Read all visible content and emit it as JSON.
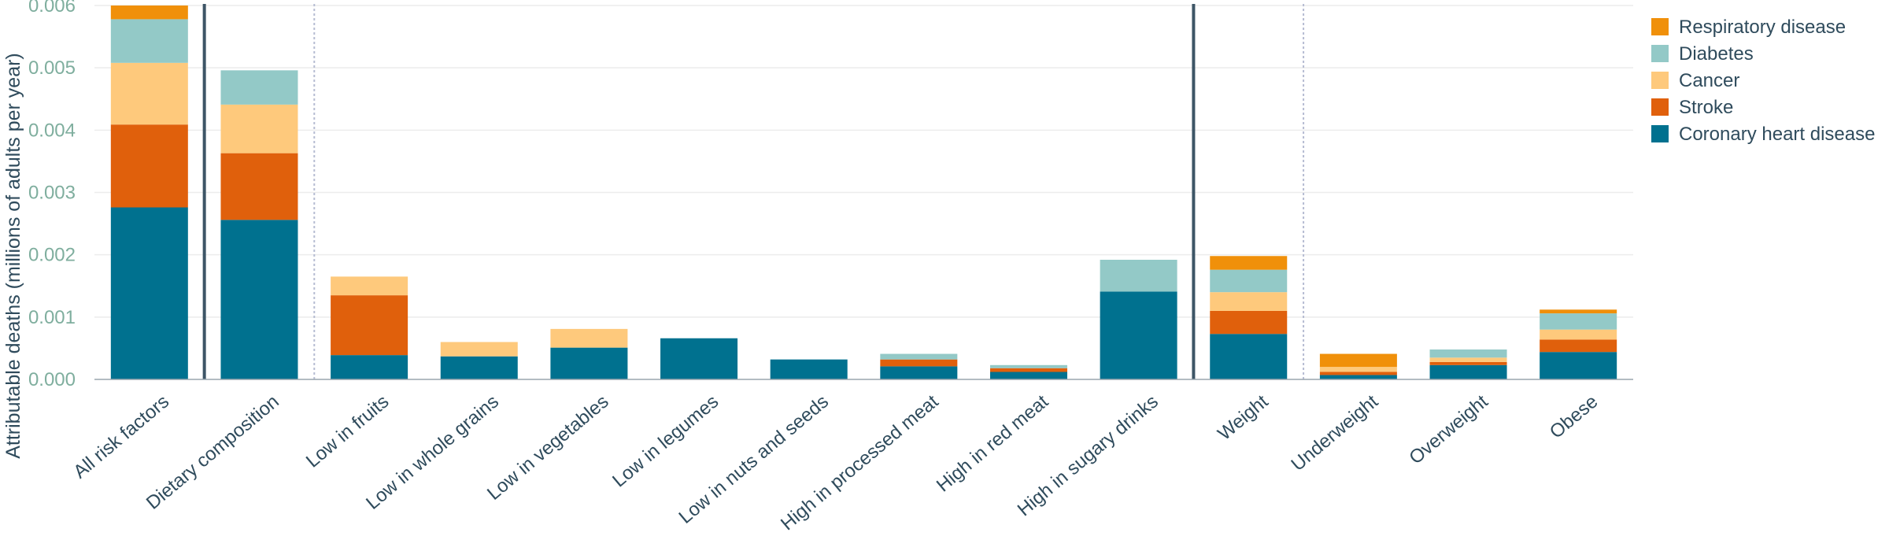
{
  "chart_data": {
    "type": "bar",
    "stacked": true,
    "ylabel": "Attributable deaths (millions of adults per year)",
    "ylim": [
      0,
      0.006
    ],
    "yticks": [
      "0.000",
      "0.001",
      "0.002",
      "0.003",
      "0.004",
      "0.005",
      "0.006"
    ],
    "grid": true,
    "legend_position": "right",
    "categories": [
      "All risk factors",
      "Dietary composition",
      "Low in fruits",
      "Low in whole grains",
      "Low in vegetables",
      "Low in legumes",
      "Low in nuts and seeds",
      "High in processed meat",
      "High in red meat",
      "High in sugary drinks",
      "Weight",
      "Underweight",
      "Overweight",
      "Obese"
    ],
    "group_separators": {
      "solid_after": [
        0,
        9
      ],
      "dotted_after": [
        1,
        10
      ]
    },
    "series": [
      {
        "name": "Coronary heart disease",
        "color": "#00718f",
        "values": [
          0.00276,
          0.00256,
          0.00039,
          0.00037,
          0.00051,
          0.00066,
          0.00032,
          0.00021,
          0.00012,
          0.00141,
          0.00073,
          7e-05,
          0.00023,
          0.00044
        ]
      },
      {
        "name": "Stroke",
        "color": "#e0600c",
        "values": [
          0.00133,
          0.00107,
          0.00096,
          0.0,
          0.0,
          0.0,
          0.0,
          0.00011,
          6e-05,
          0.0,
          0.00037,
          5e-05,
          5e-05,
          0.0002
        ]
      },
      {
        "name": "Cancer",
        "color": "#fec97c",
        "values": [
          0.00099,
          0.00078,
          0.0003,
          0.00023,
          0.0003,
          0.0,
          0.0,
          0.0,
          0.0,
          0.0,
          0.0003,
          8e-05,
          7e-05,
          0.00016
        ]
      },
      {
        "name": "Diabetes",
        "color": "#93c9c7",
        "values": [
          0.0007,
          0.00055,
          0.0,
          0.0,
          0.0,
          0.0,
          0.0,
          9e-05,
          5e-05,
          0.00051,
          0.00036,
          0.0,
          0.00013,
          0.00026
        ]
      },
      {
        "name": "Respiratory disease",
        "color": "#f0900a",
        "values": [
          0.00022,
          0.0,
          0.0,
          0.0,
          0.0,
          0.0,
          0.0,
          0.0,
          0.0,
          0.0,
          0.00022,
          0.00021,
          0.0,
          6e-05
        ]
      }
    ],
    "legend_order": [
      "Respiratory disease",
      "Diabetes",
      "Cancer",
      "Stroke",
      "Coronary heart disease"
    ]
  }
}
